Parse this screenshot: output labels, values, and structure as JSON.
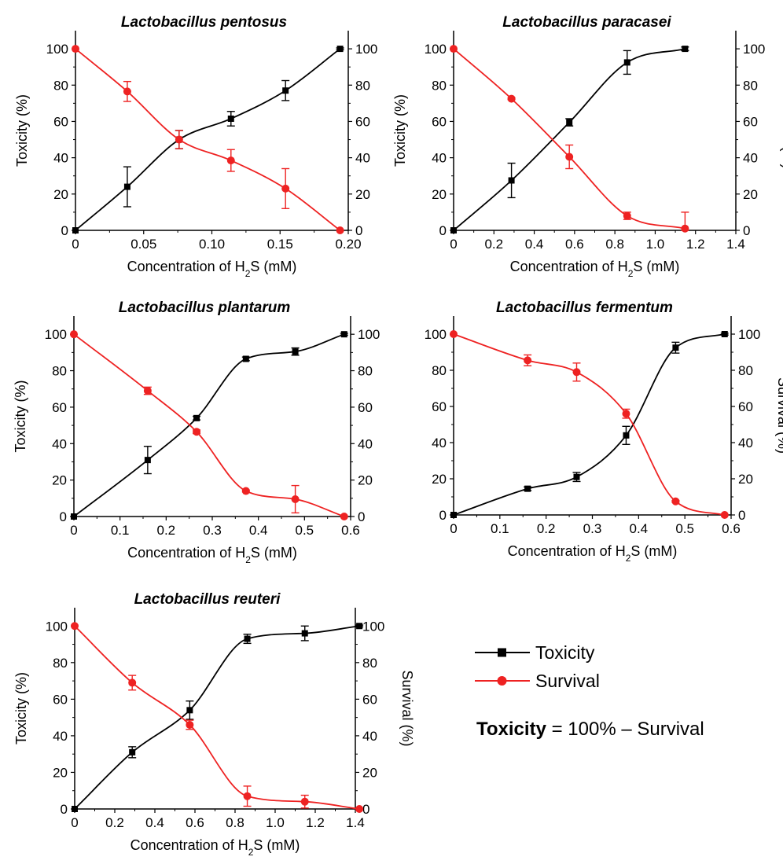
{
  "colors": {
    "toxicity": "#000000",
    "survival": "#ee2222",
    "axis": "#000000"
  },
  "legend": {
    "toxicity_label": "Toxicity",
    "survival_label": "Survival",
    "toxicity_marker": "square",
    "survival_marker": "circle",
    "formula_bold": "Toxicity",
    "formula_rest": " = 100% – Survival"
  },
  "chart_data": [
    {
      "type": "line",
      "title": "Lactobacillus pentosus",
      "xlabel_main": "Concentration of H",
      "xlabel_sub": "2",
      "xlabel_end": "S (mM)",
      "ylabel_left": "Toxicity (%)",
      "ylabel_right": "",
      "xlim": [
        0,
        0.2
      ],
      "ylim": [
        0,
        110
      ],
      "xticks": [
        0,
        0.05,
        0.1,
        0.15,
        0.2
      ],
      "xtick_labels": [
        "0",
        "0.05",
        "0.10",
        "0.15",
        "0.20"
      ],
      "yticks": [
        0,
        20,
        40,
        60,
        80,
        100
      ],
      "ytick_labels": [
        "0",
        "20",
        "40",
        "60",
        "80",
        "100"
      ],
      "series": [
        {
          "name": "Toxicity",
          "x": [
            0,
            0.038,
            0.076,
            0.114,
            0.154,
            0.194
          ],
          "y": [
            0,
            24,
            50,
            61.5,
            77,
            100
          ],
          "err": [
            0,
            11,
            5,
            4,
            5.5,
            0.5
          ]
        },
        {
          "name": "Survival",
          "x": [
            0,
            0.038,
            0.076,
            0.114,
            0.154,
            0.194
          ],
          "y": [
            100,
            76.5,
            50,
            38.5,
            23,
            0
          ],
          "err": [
            0,
            5.5,
            5,
            6,
            11,
            0
          ]
        }
      ]
    },
    {
      "type": "line",
      "title": "Lactobacillus paracasei",
      "xlabel_main": "Concentration of H",
      "xlabel_sub": "2",
      "xlabel_end": "S (mM)",
      "ylabel_left": "Toxicity (%)",
      "ylabel_right": "Survival  (%)",
      "xlim": [
        0,
        1.4
      ],
      "ylim": [
        0,
        110
      ],
      "xticks": [
        0,
        0.2,
        0.4,
        0.6,
        0.8,
        1.0,
        1.2,
        1.4
      ],
      "xtick_labels": [
        "0",
        "0.2",
        "0.4",
        "0.6",
        "0.8",
        "1.0",
        "1.2",
        "1.4"
      ],
      "yticks": [
        0,
        20,
        40,
        60,
        80,
        100
      ],
      "ytick_labels": [
        "0",
        "20",
        "40",
        "60",
        "80",
        "100"
      ],
      "series": [
        {
          "name": "Toxicity",
          "x": [
            0,
            0.287,
            0.574,
            0.861,
            1.148
          ],
          "y": [
            0,
            27.5,
            59.5,
            92.5,
            100
          ],
          "err": [
            0,
            9.5,
            2,
            6.5,
            1
          ]
        },
        {
          "name": "Survival",
          "x": [
            0,
            0.287,
            0.574,
            0.861,
            1.148
          ],
          "y": [
            100,
            72.5,
            40.5,
            8,
            1
          ],
          "err": [
            0,
            0.5,
            6.5,
            2,
            9
          ]
        }
      ]
    },
    {
      "type": "line",
      "title": "Lactobacillus plantarum",
      "xlabel_main": "Concentration of H",
      "xlabel_sub": "2",
      "xlabel_end": "S (mM)",
      "ylabel_left": "Toxicity (%)",
      "ylabel_right": "",
      "xlim": [
        0,
        0.6
      ],
      "ylim": [
        0,
        110
      ],
      "xticks": [
        0,
        0.1,
        0.2,
        0.3,
        0.4,
        0.5,
        0.6
      ],
      "xtick_labels": [
        "0",
        "0.1",
        "0.2",
        "0.3",
        "0.4",
        "0.5",
        "0.6"
      ],
      "yticks": [
        0,
        20,
        40,
        60,
        80,
        100
      ],
      "ytick_labels": [
        "0",
        "20",
        "40",
        "60",
        "80",
        "100"
      ],
      "series": [
        {
          "name": "Toxicity",
          "x": [
            0,
            0.16,
            0.266,
            0.373,
            0.48,
            0.586
          ],
          "y": [
            0,
            31,
            54,
            86.5,
            90.5,
            100
          ],
          "err": [
            0,
            7.5,
            1,
            1,
            2,
            0.5
          ]
        },
        {
          "name": "Survival",
          "x": [
            0,
            0.16,
            0.266,
            0.373,
            0.48,
            0.586
          ],
          "y": [
            100,
            69,
            46.5,
            14,
            9.5,
            0
          ],
          "err": [
            0,
            2,
            1,
            0.5,
            7.5,
            0
          ]
        }
      ]
    },
    {
      "type": "line",
      "title": "Lactobacillus fermentum",
      "xlabel_main": "Concentration of H",
      "xlabel_sub": "2",
      "xlabel_end": "S (mM)",
      "ylabel_left": "",
      "ylabel_right": "Survival  (%)",
      "xlim": [
        0,
        0.6
      ],
      "ylim": [
        0,
        110
      ],
      "xticks": [
        0,
        0.1,
        0.2,
        0.3,
        0.4,
        0.5,
        0.6
      ],
      "xtick_labels": [
        "0",
        "0.1",
        "0.2",
        "0.3",
        "0.4",
        "0.5",
        "0.6"
      ],
      "yticks": [
        0,
        20,
        40,
        60,
        80,
        100
      ],
      "ytick_labels": [
        "0",
        "20",
        "40",
        "60",
        "80",
        "100"
      ],
      "series": [
        {
          "name": "Toxicity",
          "x": [
            0,
            0.16,
            0.266,
            0.373,
            0.48,
            0.586
          ],
          "y": [
            0,
            14.5,
            21,
            44,
            92.5,
            100
          ],
          "err": [
            0,
            1,
            2.5,
            5,
            3,
            0.5
          ]
        },
        {
          "name": "Survival",
          "x": [
            0,
            0.16,
            0.266,
            0.373,
            0.48,
            0.586
          ],
          "y": [
            100,
            85.5,
            79,
            56,
            7.5,
            0
          ],
          "err": [
            0,
            3,
            5,
            2.5,
            0.5,
            0
          ]
        }
      ]
    },
    {
      "type": "line",
      "title": "Lactobacillus reuteri",
      "xlabel_main": "Concentration of H",
      "xlabel_sub": "2",
      "xlabel_end": "S (mM)",
      "ylabel_left": "Toxicity (%)",
      "ylabel_right": "Survival  (%)",
      "xlim": [
        0,
        1.4
      ],
      "ylim": [
        0,
        110
      ],
      "xticks": [
        0,
        0.2,
        0.4,
        0.6,
        0.8,
        1.0,
        1.2,
        1.4
      ],
      "xtick_labels": [
        "0",
        "0.2",
        "0.4",
        "0.6",
        "0.8",
        "1.0",
        "1.2",
        "1.4"
      ],
      "yticks": [
        0,
        20,
        40,
        60,
        80,
        100
      ],
      "ytick_labels": [
        "0",
        "20",
        "40",
        "60",
        "80",
        "100"
      ],
      "series": [
        {
          "name": "Toxicity",
          "x": [
            0,
            0.287,
            0.574,
            0.861,
            1.148,
            1.42
          ],
          "y": [
            0,
            31,
            54,
            93,
            96,
            100
          ],
          "err": [
            0,
            3,
            5,
            2.5,
            4,
            0.5
          ]
        },
        {
          "name": "Survival",
          "x": [
            0,
            0.287,
            0.574,
            0.861,
            1.148,
            1.42
          ],
          "y": [
            100,
            69,
            46,
            7,
            4,
            0
          ],
          "err": [
            0,
            4,
            2.5,
            5.5,
            3.5,
            0
          ]
        }
      ]
    }
  ]
}
